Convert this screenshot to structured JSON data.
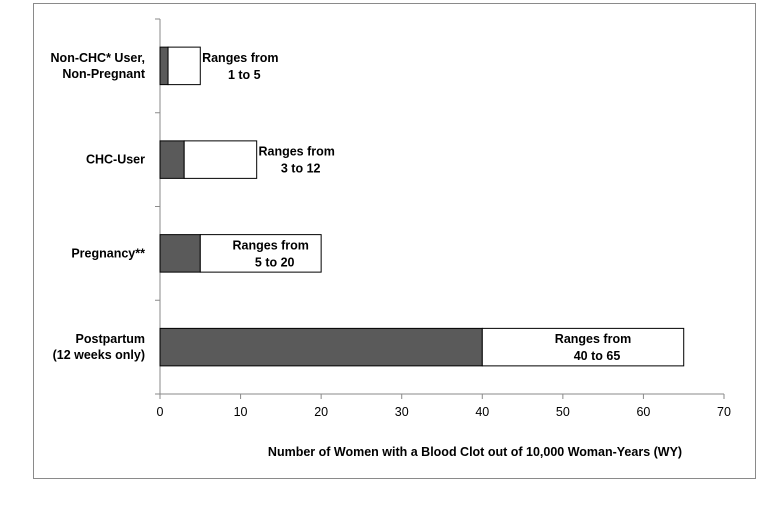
{
  "chart_data": {
    "type": "bar",
    "orientation": "horizontal",
    "stacked": true,
    "categories": [
      [
        "Non-CHC* User,",
        "Non-Pregnant"
      ],
      [
        "CHC-User"
      ],
      [
        "Pregnancy**"
      ],
      [
        "Postpartum",
        "(12 weeks only)"
      ]
    ],
    "series": [
      {
        "values": [
          1,
          3,
          5,
          40
        ],
        "color": "#5a5a5a"
      },
      {
        "values": [
          4,
          9,
          15,
          25
        ],
        "color": "#ffffff"
      }
    ],
    "totals": [
      5,
      12,
      20,
      65
    ],
    "annotations": [
      [
        "Ranges from",
        "1 to 5"
      ],
      [
        "Ranges from",
        "3 to 12"
      ],
      [
        "Ranges from",
        "5 to 20"
      ],
      [
        "Ranges from",
        "40 to 65"
      ]
    ],
    "xlim": [
      0,
      70
    ],
    "xticks": [
      0,
      10,
      20,
      30,
      40,
      50,
      60,
      70
    ],
    "xlabel": "Number of Women with a Blood Clot out of 10,000  Woman-Years (WY)",
    "ylabel": "",
    "title": "",
    "grid": false,
    "legend": "none"
  }
}
